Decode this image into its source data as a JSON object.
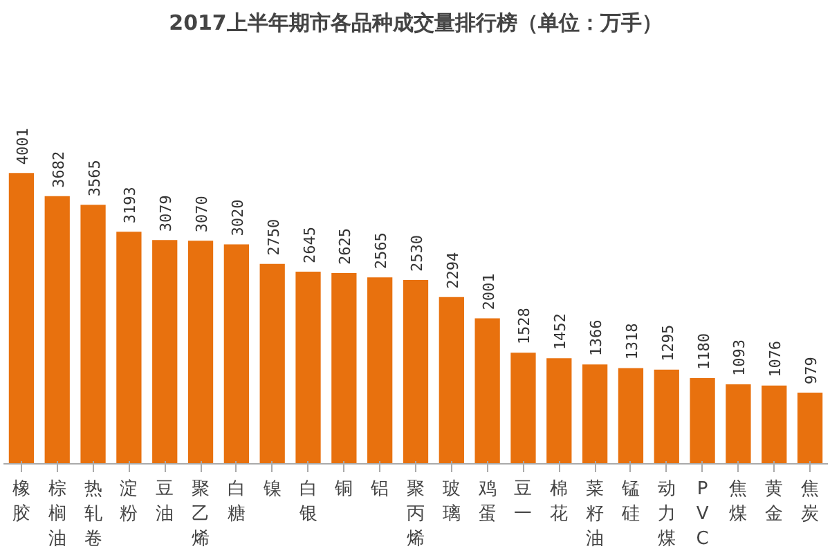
{
  "chart_data": {
    "type": "bar",
    "title": "2017上半年期市各品种成交量排行榜（单位：万手）",
    "categories": [
      "橡胶",
      "棕榈油",
      "热轧卷",
      "淀粉",
      "豆油",
      "聚乙烯",
      "白糖",
      "镍",
      "白银",
      "铜",
      "铝",
      "聚丙烯",
      "玻璃",
      "鸡蛋",
      "豆一",
      "棉花",
      "菜籽油",
      "锰硅",
      "动力煤",
      "PVC",
      "焦煤",
      "黄金",
      "焦炭"
    ],
    "values": [
      4001,
      3682,
      3565,
      3193,
      3079,
      3070,
      3020,
      2750,
      2645,
      2625,
      2565,
      2530,
      2294,
      2001,
      1528,
      1452,
      1366,
      1318,
      1295,
      1180,
      1093,
      1076,
      979
    ],
    "color": "#e8710e",
    "data_labels": true,
    "grid": false
  }
}
